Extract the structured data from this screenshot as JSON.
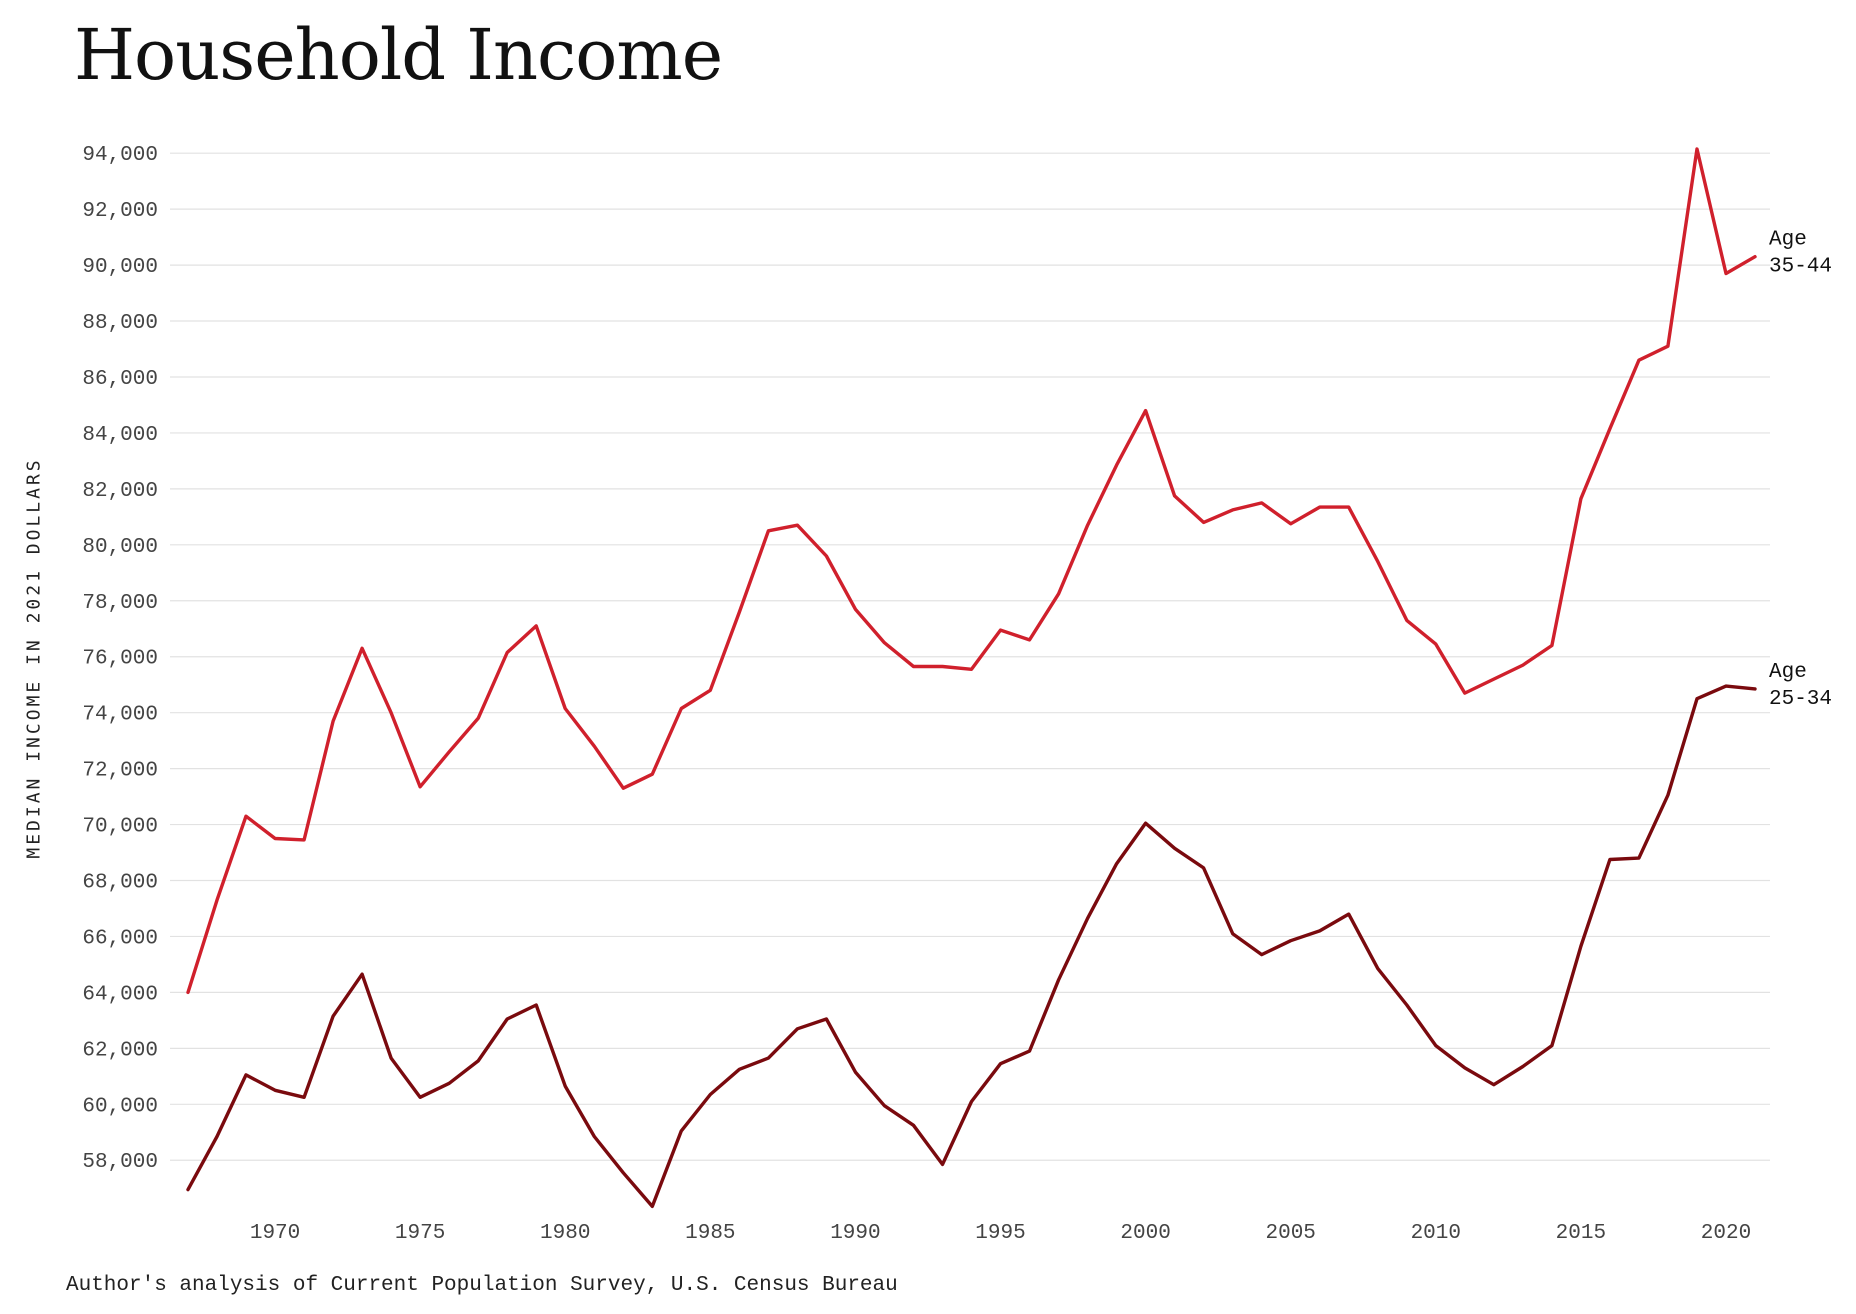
{
  "chart_data": {
    "type": "line",
    "title": "Household Income",
    "ylabel": "MEDIAN INCOME IN 2021 DOLLARS",
    "source": "Author's analysis of Current Population Survey, U.S. Census Bureau",
    "x": [
      1967,
      1968,
      1969,
      1970,
      1971,
      1972,
      1973,
      1974,
      1975,
      1976,
      1977,
      1978,
      1979,
      1980,
      1981,
      1982,
      1983,
      1984,
      1985,
      1986,
      1987,
      1988,
      1989,
      1990,
      1991,
      1992,
      1993,
      1994,
      1995,
      1996,
      1997,
      1998,
      1999,
      2000,
      2001,
      2002,
      2003,
      2004,
      2005,
      2006,
      2007,
      2008,
      2009,
      2010,
      2011,
      2012,
      2013,
      2014,
      2015,
      2016,
      2017,
      2018,
      2019,
      2020,
      2021
    ],
    "series": [
      {
        "name": "Age 35-44",
        "label_lines": [
          "Age",
          "35-44"
        ],
        "color": "#d0202c",
        "values": [
          64000,
          67300,
          70300,
          69500,
          69450,
          73700,
          76300,
          74000,
          71350,
          72600,
          73800,
          76150,
          77100,
          74150,
          72800,
          71300,
          71800,
          74150,
          74800,
          77600,
          80500,
          80700,
          79600,
          77700,
          76500,
          75650,
          75650,
          75550,
          76950,
          76600,
          78250,
          80700,
          82850,
          84800,
          81750,
          80800,
          81250,
          81500,
          80750,
          81350,
          81350,
          79400,
          77300,
          76450,
          74700,
          75200,
          75700,
          76400,
          81650,
          84150,
          86600,
          87100,
          94150,
          89700,
          90300
        ]
      },
      {
        "name": "Age 25-34",
        "label_lines": [
          "Age",
          "25-34"
        ],
        "color": "#7a0a0e",
        "values": [
          56950,
          58850,
          61050,
          60500,
          60250,
          63150,
          64650,
          61650,
          60250,
          60750,
          61550,
          63050,
          63550,
          60650,
          58850,
          57550,
          56350,
          59050,
          60350,
          61250,
          61650,
          62700,
          63050,
          61150,
          59950,
          59250,
          57850,
          60100,
          61450,
          61900,
          64450,
          66650,
          68600,
          70050,
          69150,
          68450,
          66100,
          65350,
          65850,
          66200,
          66800,
          64850,
          63550,
          62100,
          61300,
          60700,
          61350,
          62100,
          65650,
          68750,
          68800,
          71050,
          74500,
          74950,
          74850
        ]
      }
    ],
    "y_ticks": [
      58000,
      60000,
      62000,
      64000,
      66000,
      68000,
      70000,
      72000,
      74000,
      76000,
      78000,
      80000,
      82000,
      84000,
      86000,
      88000,
      90000,
      92000,
      94000
    ],
    "y_tick_labels": [
      "58,000",
      "60,000",
      "62,000",
      "64,000",
      "66,000",
      "68,000",
      "70,000",
      "72,000",
      "74,000",
      "76,000",
      "78,000",
      "80,000",
      "82,000",
      "84,000",
      "86,000",
      "88,000",
      "90,000",
      "92,000",
      "94,000"
    ],
    "x_ticks": [
      1970,
      1975,
      1980,
      1985,
      1990,
      1995,
      2000,
      2005,
      2010,
      2015,
      2020
    ],
    "x_tick_labels": [
      "1970",
      "1975",
      "1980",
      "1985",
      "1990",
      "1995",
      "2000",
      "2005",
      "2010",
      "2015",
      "2020"
    ],
    "xlim": [
      1967,
      2021
    ],
    "ylim": [
      56000,
      94300
    ],
    "grid": "horizontal",
    "legend": "end-of-line labels"
  }
}
